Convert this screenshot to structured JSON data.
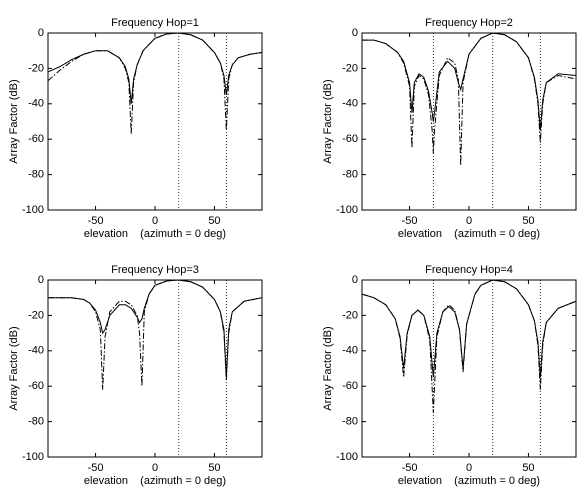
{
  "chart_data": [
    {
      "type": "line",
      "title": "Frequency Hop=1",
      "xlabel": "elevation    (azimuth = 0 deg)",
      "ylabel": "Array Factor (dB)",
      "x": [
        -90,
        -80,
        -70,
        -60,
        -50,
        -40,
        -30,
        -25,
        -22,
        -20,
        -18,
        -15,
        -10,
        0,
        10,
        20,
        30,
        40,
        50,
        55,
        58,
        60,
        62,
        65,
        70,
        80,
        90
      ],
      "series": [
        {
          "color": "#000000",
          "linestyle": "solid",
          "values": [
            -22,
            -19,
            -15,
            -12,
            -10,
            -10,
            -14,
            -19,
            -26,
            -40,
            -26,
            -18,
            -10,
            -3,
            -0.5,
            0,
            -1,
            -4,
            -11,
            -17,
            -24,
            -35,
            -24,
            -18,
            -14,
            -12,
            -11
          ]
        },
        {
          "color": "#000000",
          "linestyle": "dashdot",
          "values": [
            -27,
            -21,
            -16,
            -12,
            -10,
            -10,
            -14,
            -20,
            -28,
            -57,
            -28,
            -18,
            -10,
            -3,
            -0.5,
            0,
            -1,
            -4,
            -11,
            -17,
            -26,
            -55,
            -26,
            -18,
            -14,
            -12,
            -11
          ]
        }
      ],
      "vlines": [
        20,
        60
      ],
      "xlim": [
        -90,
        90
      ],
      "ylim": [
        -100,
        0
      ],
      "xticks": [
        -50,
        0,
        50
      ],
      "yticks": [
        -100,
        -80,
        -60,
        -40,
        -20,
        0
      ]
    },
    {
      "type": "line",
      "title": "Frequency Hop=2",
      "xlabel": "elevation    (azimuth = 0 deg)",
      "ylabel": "Array Factor (dB)",
      "x": [
        -90,
        -80,
        -70,
        -60,
        -55,
        -50,
        -48,
        -46,
        -42,
        -38,
        -34,
        -31,
        -30,
        -29,
        -25,
        -18,
        -12,
        -9,
        -7,
        -5,
        0,
        10,
        20,
        30,
        40,
        50,
        55,
        58,
        60,
        62,
        65,
        75,
        90
      ],
      "series": [
        {
          "color": "#000000",
          "linestyle": "solid",
          "values": [
            -4,
            -4,
            -6,
            -11,
            -16,
            -28,
            -45,
            -28,
            -23,
            -25,
            -33,
            -45,
            -50,
            -45,
            -22,
            -16,
            -20,
            -28,
            -32,
            -26,
            -12,
            -3,
            0,
            -1,
            -5,
            -14,
            -25,
            -38,
            -55,
            -38,
            -28,
            -23,
            -24
          ]
        },
        {
          "color": "#000000",
          "linestyle": "dashdot",
          "values": [
            -4,
            -4,
            -6,
            -11,
            -17,
            -30,
            -65,
            -30,
            -24,
            -26,
            -35,
            -55,
            -68,
            -55,
            -24,
            -14,
            -17,
            -26,
            -75,
            -28,
            -12,
            -3,
            0,
            -1,
            -5,
            -14,
            -26,
            -40,
            -62,
            -40,
            -28,
            -24,
            -26
          ]
        }
      ],
      "vlines": [
        -30,
        20,
        60
      ],
      "xlim": [
        -90,
        90
      ],
      "ylim": [
        -100,
        0
      ],
      "xticks": [
        -50,
        0,
        50
      ],
      "yticks": [
        -100,
        -80,
        -60,
        -40,
        -20,
        0
      ]
    },
    {
      "type": "line",
      "title": "Frequency Hop=3",
      "xlabel": "elevation    (azimuth = 0 deg)",
      "ylabel": "Array Factor (dB)",
      "x": [
        -90,
        -70,
        -60,
        -55,
        -50,
        -46,
        -44,
        -42,
        -38,
        -30,
        -25,
        -20,
        -15,
        -13,
        -11,
        -9,
        -5,
        0,
        10,
        20,
        30,
        40,
        50,
        55,
        58,
        60,
        62,
        65,
        75,
        90
      ],
      "series": [
        {
          "color": "#000000",
          "linestyle": "solid",
          "values": [
            -10,
            -10,
            -11,
            -13,
            -17,
            -24,
            -30,
            -28,
            -20,
            -14,
            -14,
            -16,
            -21,
            -24,
            -22,
            -16,
            -8,
            -3,
            -0.5,
            0,
            -1,
            -4,
            -11,
            -18,
            -28,
            -55,
            -28,
            -18,
            -12,
            -10
          ]
        },
        {
          "color": "#000000",
          "linestyle": "dashdot",
          "values": [
            -10,
            -10,
            -11,
            -13,
            -18,
            -28,
            -62,
            -32,
            -18,
            -12,
            -12,
            -14,
            -20,
            -30,
            -60,
            -18,
            -8,
            -3,
            -0.5,
            0,
            -1,
            -4,
            -11,
            -18,
            -30,
            -57,
            -30,
            -18,
            -12,
            -10
          ]
        }
      ],
      "vlines": [
        20,
        60
      ],
      "xlim": [
        -90,
        90
      ],
      "ylim": [
        -100,
        0
      ],
      "xticks": [
        -50,
        0,
        50
      ],
      "yticks": [
        -100,
        -80,
        -60,
        -40,
        -20,
        0
      ]
    },
    {
      "type": "line",
      "title": "Frequency Hop=4",
      "xlabel": "elevation    (azimuth = 0 deg)",
      "ylabel": "Array Factor (dB)",
      "x": [
        -90,
        -80,
        -70,
        -62,
        -58,
        -55,
        -52,
        -48,
        -43,
        -38,
        -33,
        -30,
        -27,
        -22,
        -17,
        -12,
        -8,
        -5,
        -2,
        5,
        10,
        20,
        30,
        40,
        50,
        55,
        58,
        60,
        62,
        65,
        75,
        90
      ],
      "series": [
        {
          "color": "#000000",
          "linestyle": "solid",
          "values": [
            -8,
            -10,
            -14,
            -22,
            -32,
            -50,
            -30,
            -20,
            -17,
            -20,
            -32,
            -55,
            -30,
            -18,
            -15,
            -18,
            -28,
            -50,
            -25,
            -8,
            -3,
            0,
            -1,
            -5,
            -14,
            -23,
            -35,
            -55,
            -35,
            -24,
            -16,
            -12
          ]
        },
        {
          "color": "#000000",
          "linestyle": "dashdot",
          "values": [
            -8,
            -10,
            -14,
            -22,
            -33,
            -55,
            -31,
            -20,
            -17,
            -20,
            -34,
            -75,
            -32,
            -18,
            -14,
            -17,
            -28,
            -52,
            -25,
            -8,
            -3,
            0,
            -1,
            -5,
            -14,
            -23,
            -37,
            -62,
            -37,
            -24,
            -16,
            -12
          ]
        }
      ],
      "vlines": [
        -30,
        20,
        60
      ],
      "xlim": [
        -90,
        90
      ],
      "ylim": [
        -100,
        0
      ],
      "xticks": [
        -50,
        0,
        50
      ],
      "yticks": [
        -100,
        -80,
        -60,
        -40,
        -20,
        0
      ]
    }
  ]
}
